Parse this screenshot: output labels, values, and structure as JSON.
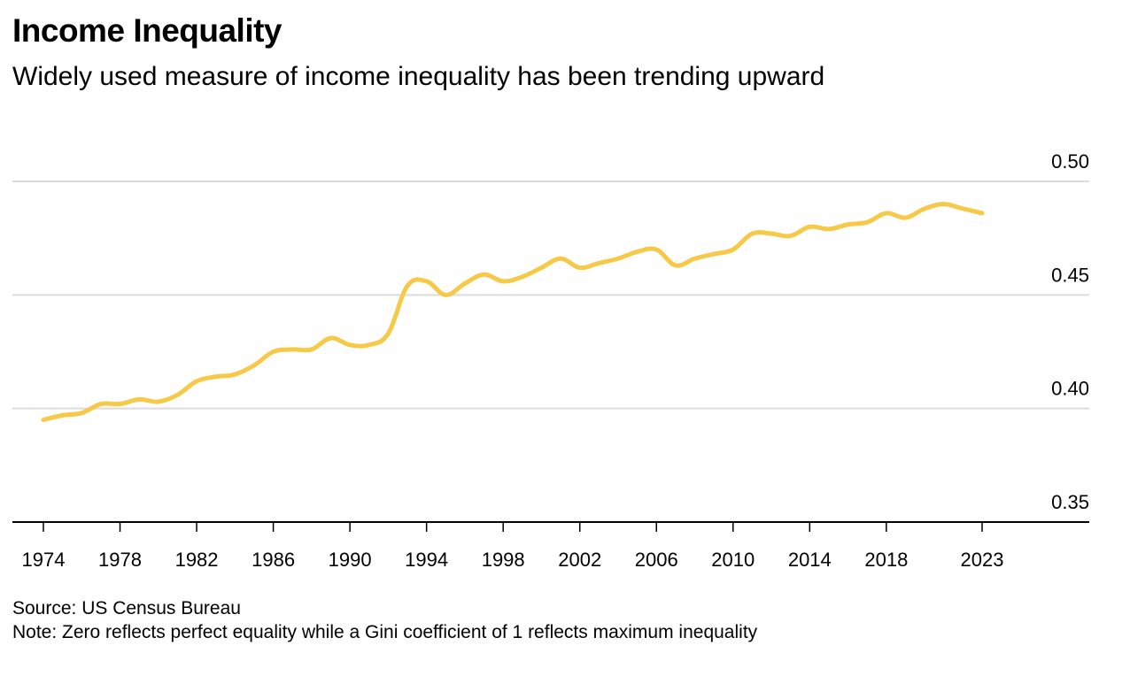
{
  "chart_data": {
    "type": "line",
    "title": "Income Inequality",
    "subtitle": "Widely used measure of income inequality has been trending upward",
    "xlabel": "",
    "ylabel": "",
    "ylim": [
      0.35,
      0.5
    ],
    "xlim": [
      1974,
      2023
    ],
    "grid": true,
    "y_axis_side": "right",
    "yticks": [
      0.35,
      0.4,
      0.45,
      0.5
    ],
    "ytick_labels": [
      "0.35",
      "0.40",
      "0.45",
      "0.50"
    ],
    "xticks": [
      1974,
      1978,
      1982,
      1986,
      1990,
      1994,
      1998,
      2002,
      2006,
      2010,
      2014,
      2018,
      2023
    ],
    "xtick_labels": [
      "1974",
      "1978",
      "1982",
      "1986",
      "1990",
      "1994",
      "1998",
      "2002",
      "2006",
      "2010",
      "2014",
      "2018",
      "2023"
    ],
    "series": [
      {
        "name": "Gini coefficient",
        "color": "#f7c948",
        "x": [
          1974,
          1975,
          1976,
          1977,
          1978,
          1979,
          1980,
          1981,
          1982,
          1983,
          1984,
          1985,
          1986,
          1987,
          1988,
          1989,
          1990,
          1991,
          1992,
          1993,
          1994,
          1995,
          1996,
          1997,
          1998,
          1999,
          2000,
          2001,
          2002,
          2003,
          2004,
          2005,
          2006,
          2007,
          2008,
          2009,
          2010,
          2011,
          2012,
          2013,
          2014,
          2015,
          2016,
          2017,
          2018,
          2019,
          2020,
          2021,
          2022,
          2023
        ],
        "values": [
          0.395,
          0.397,
          0.398,
          0.402,
          0.402,
          0.404,
          0.403,
          0.406,
          0.412,
          0.414,
          0.415,
          0.419,
          0.425,
          0.426,
          0.426,
          0.431,
          0.428,
          0.428,
          0.433,
          0.454,
          0.456,
          0.45,
          0.455,
          0.459,
          0.456,
          0.458,
          0.462,
          0.466,
          0.462,
          0.464,
          0.466,
          0.469,
          0.47,
          0.463,
          0.466,
          0.468,
          0.47,
          0.477,
          0.477,
          0.476,
          0.48,
          0.479,
          0.481,
          0.482,
          0.486,
          0.484,
          0.488,
          0.49,
          0.488,
          0.486
        ]
      }
    ],
    "source": "Source: US Census Bureau",
    "note": "Note: Zero reflects perfect equality while a Gini coefficient of 1 reflects maximum inequality",
    "colors": {
      "line": "#f7c948",
      "grid": "#dcdcdc",
      "axis": "#000000"
    }
  }
}
